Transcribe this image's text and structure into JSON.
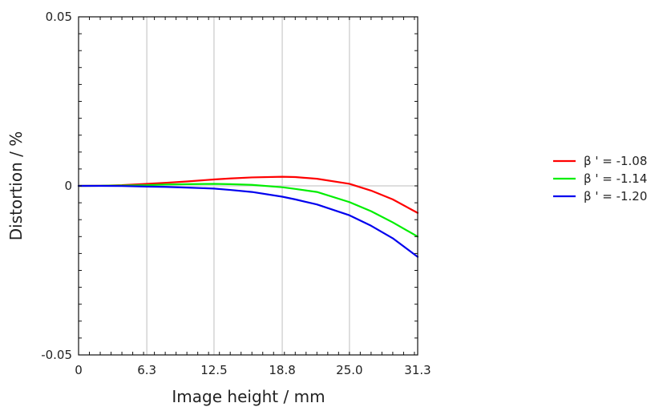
{
  "chart_data": {
    "type": "line",
    "xlabel": "Image height / mm",
    "ylabel": "Distortion / %",
    "xlim": [
      0,
      31.3
    ],
    "ylim": [
      -0.05,
      0.05
    ],
    "x_ticks": [
      {
        "value": 0,
        "label": "0"
      },
      {
        "value": 6.3,
        "label": "6.3"
      },
      {
        "value": 12.5,
        "label": "12.5"
      },
      {
        "value": 18.8,
        "label": "18.8"
      },
      {
        "value": 25.0,
        "label": "25.0"
      },
      {
        "value": 31.3,
        "label": "31.3"
      }
    ],
    "y_ticks": [
      {
        "value": 0.05,
        "label": "0.05"
      },
      {
        "value": 0,
        "label": "0"
      },
      {
        "value": -0.05,
        "label": "-0.05"
      }
    ],
    "grid": "vertical at labeled x ticks, horizontal at zero",
    "legend_position": "right",
    "x": [
      0,
      2,
      4,
      6.3,
      8,
      10,
      12.5,
      14,
      16,
      18.8,
      20,
      22,
      25.0,
      27,
      29,
      31.3
    ],
    "series": [
      {
        "name": "β ' = -1.08",
        "color": "#ff0000",
        "values": [
          0,
          3e-05,
          0.0002,
          0.0006,
          0.0009,
          0.0013,
          0.0019,
          0.0022,
          0.0025,
          0.0027,
          0.0026,
          0.0021,
          0.0006,
          -0.0014,
          -0.004,
          -0.008
        ]
      },
      {
        "name": "β ' = -1.14",
        "color": "#00ee00",
        "values": [
          0,
          2e-05,
          0.0001,
          0.0002,
          0.0004,
          0.0005,
          0.0006,
          0.0005,
          0.0003,
          -0.0004,
          -0.0009,
          -0.0018,
          -0.0048,
          -0.0075,
          -0.0108,
          -0.015
        ]
      },
      {
        "name": "β ' = -1.20",
        "color": "#0000ee",
        "values": [
          0,
          0,
          -5e-05,
          -0.0002,
          -0.0003,
          -0.0005,
          -0.0008,
          -0.0012,
          -0.0018,
          -0.0032,
          -0.004,
          -0.0055,
          -0.0087,
          -0.0118,
          -0.0155,
          -0.021
        ]
      }
    ]
  }
}
